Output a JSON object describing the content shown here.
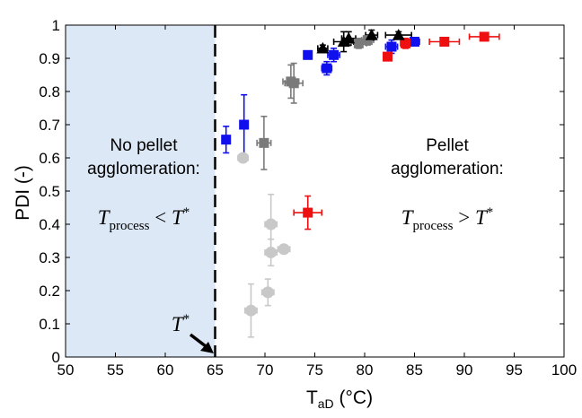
{
  "chart_data": {
    "type": "scatter",
    "xlabel_main": "T",
    "xlabel_sub": "aD",
    "xlabel_unit": " (°C)",
    "ylabel": "PDI (-)",
    "xlim": [
      50,
      100
    ],
    "ylim": [
      0,
      1
    ],
    "xticks": [
      50,
      55,
      60,
      65,
      70,
      75,
      80,
      85,
      90,
      95,
      100
    ],
    "yticks": [
      0,
      0.1,
      0.2,
      0.3,
      0.4,
      0.5,
      0.6,
      0.7,
      0.8,
      0.9,
      1
    ],
    "ytick_labels": [
      "0",
      "0.1",
      "0.2",
      "0.3",
      "0.4",
      "0.5",
      "0.6",
      "0.7",
      "0.8",
      "0.9",
      "1"
    ],
    "threshold_x": 65,
    "shaded_region": [
      50,
      65
    ],
    "colors": {
      "shade": "#dce8f5",
      "light_gray": "#c8c8c8",
      "dark_gray": "#7a7a7a",
      "blue": "#1010ee",
      "red": "#ee1010",
      "black": "#000000"
    },
    "series": [
      {
        "name": "light-gray-circles",
        "marker": "circle",
        "color": "#c8c8c8",
        "points": [
          {
            "x": 67.8,
            "y": 0.6,
            "xerr": 0.5,
            "yerr": 0
          },
          {
            "x": 68.6,
            "y": 0.14,
            "xerr": 0.6,
            "yerr": 0.08
          },
          {
            "x": 70.3,
            "y": 0.195,
            "xerr": 0.6,
            "yerr": 0.04
          },
          {
            "x": 70.6,
            "y": 0.4,
            "xerr": 0.6,
            "yerr": 0.09
          },
          {
            "x": 70.6,
            "y": 0.315,
            "xerr": 0.6,
            "yerr": 0.04
          },
          {
            "x": 71.9,
            "y": 0.325,
            "xerr": 0.6,
            "yerr": 0.01
          }
        ]
      },
      {
        "name": "dark-gray-squares",
        "marker": "square",
        "color": "#7a7a7a",
        "points": [
          {
            "x": 69.9,
            "y": 0.645,
            "xerr": 0.7,
            "yerr": 0.08
          },
          {
            "x": 72.6,
            "y": 0.83,
            "xerr": 0.8,
            "yerr": 0.05
          },
          {
            "x": 72.9,
            "y": 0.825,
            "xerr": 0.9,
            "yerr": 0.06
          },
          {
            "x": 79.4,
            "y": 0.945,
            "xerr": 0.8,
            "yerr": 0.015
          },
          {
            "x": 80.3,
            "y": 0.955,
            "xerr": 0.6,
            "yerr": 0.015
          }
        ]
      },
      {
        "name": "blue-squares",
        "marker": "square",
        "color": "#1010ee",
        "points": [
          {
            "x": 66.1,
            "y": 0.655,
            "xerr": 0.4,
            "yerr": 0.04
          },
          {
            "x": 67.9,
            "y": 0.7,
            "xerr": 0.4,
            "yerr": 0.09
          },
          {
            "x": 74.3,
            "y": 0.91,
            "xerr": 0.3,
            "yerr": 0.01
          },
          {
            "x": 76.2,
            "y": 0.87,
            "xerr": 0.5,
            "yerr": 0.02
          },
          {
            "x": 76.9,
            "y": 0.91,
            "xerr": 0.6,
            "yerr": 0.02
          },
          {
            "x": 82.7,
            "y": 0.935,
            "xerr": 0.6,
            "yerr": 0.02
          },
          {
            "x": 85.0,
            "y": 0.95,
            "xerr": 0.5,
            "yerr": 0.01
          }
        ]
      },
      {
        "name": "red-squares",
        "marker": "square",
        "color": "#ee1010",
        "points": [
          {
            "x": 74.3,
            "y": 0.435,
            "xerr": 1.4,
            "yerr": 0.05
          },
          {
            "x": 82.3,
            "y": 0.905,
            "xerr": 0.4,
            "yerr": 0.01
          },
          {
            "x": 84.1,
            "y": 0.945,
            "xerr": 0.5,
            "yerr": 0.015
          },
          {
            "x": 88.0,
            "y": 0.95,
            "xerr": 1.5,
            "yerr": 0.01
          },
          {
            "x": 92.0,
            "y": 0.965,
            "xerr": 1.5,
            "yerr": 0.01
          }
        ]
      },
      {
        "name": "black-triangles",
        "marker": "triangle",
        "color": "#000000",
        "points": [
          {
            "x": 75.8,
            "y": 0.93,
            "xerr": 0.5,
            "yerr": 0.01
          },
          {
            "x": 77.9,
            "y": 0.95,
            "xerr": 1.0,
            "yerr": 0.03
          },
          {
            "x": 78.4,
            "y": 0.96,
            "xerr": 0.7,
            "yerr": 0.02
          },
          {
            "x": 80.7,
            "y": 0.97,
            "xerr": 0.6,
            "yerr": 0.015
          },
          {
            "x": 83.4,
            "y": 0.97,
            "xerr": 1.3,
            "yerr": 0.01
          }
        ]
      }
    ],
    "annotations": {
      "left_line1": "No pellet",
      "left_line2": "agglomeration:",
      "right_line1": "Pellet",
      "right_line2": "agglomeration:",
      "left_formula": {
        "main": "T",
        "sub": "process",
        "op": " < ",
        "rhs": "T",
        "sup": "*"
      },
      "right_formula": {
        "main": "T",
        "sub": "process",
        "op": " > ",
        "rhs": "T",
        "sup": "*"
      },
      "tstar": {
        "main": "T",
        "sup": "*"
      }
    }
  }
}
